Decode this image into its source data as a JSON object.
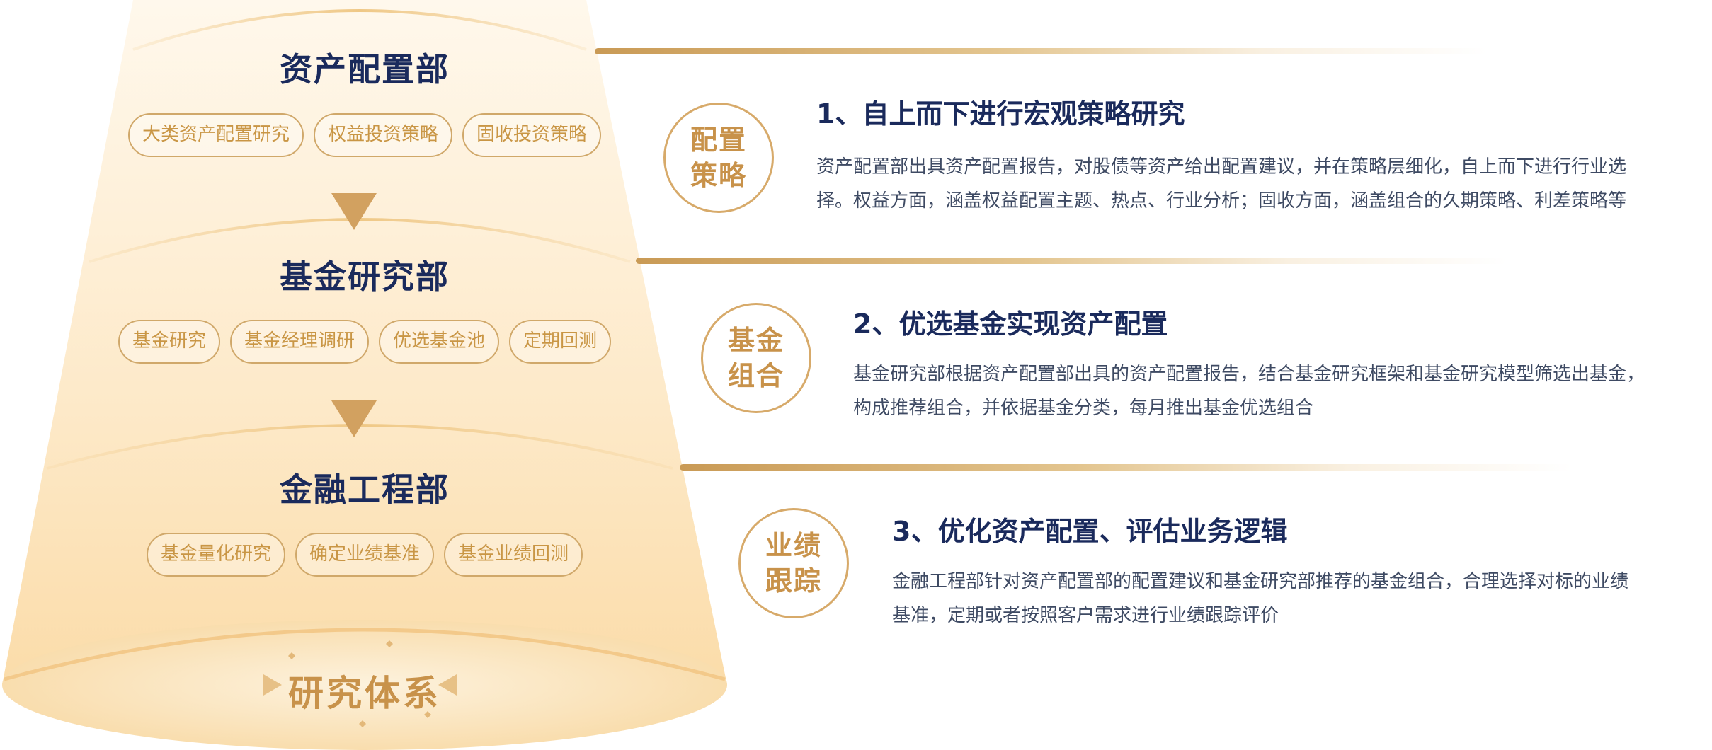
{
  "funnel": {
    "departments": [
      {
        "title": "资产配置部",
        "tags": [
          "大类资产配置研究",
          "权益投资策略",
          "固收投资策略"
        ]
      },
      {
        "title": "基金研究部",
        "tags": [
          "基金研究",
          "基金经理调研",
          "优选基金池",
          "定期回测"
        ]
      },
      {
        "title": "金融工程部",
        "tags": [
          "基金量化研究",
          "确定业绩基准",
          "基金业绩回测"
        ]
      }
    ],
    "base_label": "研究体系",
    "arrow_icon": "triangle-down-icon",
    "sparkle_icon": "sparkle-icon"
  },
  "sections": [
    {
      "badge": [
        "配置",
        "策略"
      ],
      "title": "1、自上而下进行宏观策略研究",
      "desc": [
        "资产配置部出具资产配置报告，对股债等资产给出配置建议，并在策略层细化，自上而下进行行业选",
        "择。权益方面，涵盖权益配置主题、热点、行业分析；固收方面，涵盖组合的久期策略、利差策略等"
      ]
    },
    {
      "badge": [
        "基金",
        "组合"
      ],
      "title": "2、优选基金实现资产配置",
      "desc": [
        "基金研究部根据资产配置部出具的资产配置报告，结合基金研究框架和基金研究模型筛选出基金，",
        "构成推荐组合，并依据基金分类，每月推出基金优选组合"
      ]
    },
    {
      "badge": [
        "业绩",
        "跟踪"
      ],
      "title": "3、优化资产配置、评估业务逻辑",
      "desc": [
        "金融工程部针对资产配置部的配置建议和基金研究部推荐的基金组合，合理选择对标的业绩",
        "基准，定期或者按照客户需求进行业绩跟踪评价"
      ]
    }
  ],
  "colors": {
    "navy": "#1a2a5c",
    "gold": "#c8924a",
    "gold_border": "#d0a86a",
    "body_text": "#3e4a63",
    "funnel_top": "#fff7ea",
    "funnel_bottom": "#fde3b6"
  }
}
